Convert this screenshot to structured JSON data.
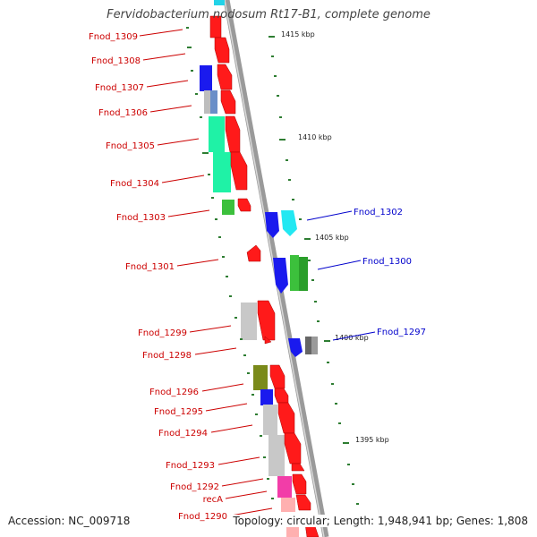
{
  "title": "Fervidobacterium nodosum Rt17-B1, complete genome",
  "accession": "Accession: NC_009718",
  "summary": "Topology: circular; Length: 1,948,941 bp; Genes: 1,808",
  "colors": {
    "backbone": "#9a9a9a",
    "label_left": "#cc0000",
    "label_right": "#0000cc",
    "tick": "#2e7d32",
    "cds": "#ff1a1a"
  },
  "kbp_labels": [
    "1415 kbp",
    "1410 kbp",
    "1405 kbp",
    "1400 kbp",
    "1395 kbp"
  ],
  "left_genes": [
    "Fnod_1309",
    "Fnod_1308",
    "Fnod_1307",
    "Fnod_1306",
    "Fnod_1305",
    "Fnod_1304",
    "Fnod_1303",
    "Fnod_1301",
    "Fnod_1299",
    "Fnod_1298",
    "Fnod_1296",
    "Fnod_1295",
    "Fnod_1294",
    "Fnod_1293",
    "Fnod_1292",
    "recA",
    "Fnod_1290"
  ],
  "right_genes": [
    "Fnod_1302",
    "Fnod_1300",
    "Fnod_1297"
  ]
}
